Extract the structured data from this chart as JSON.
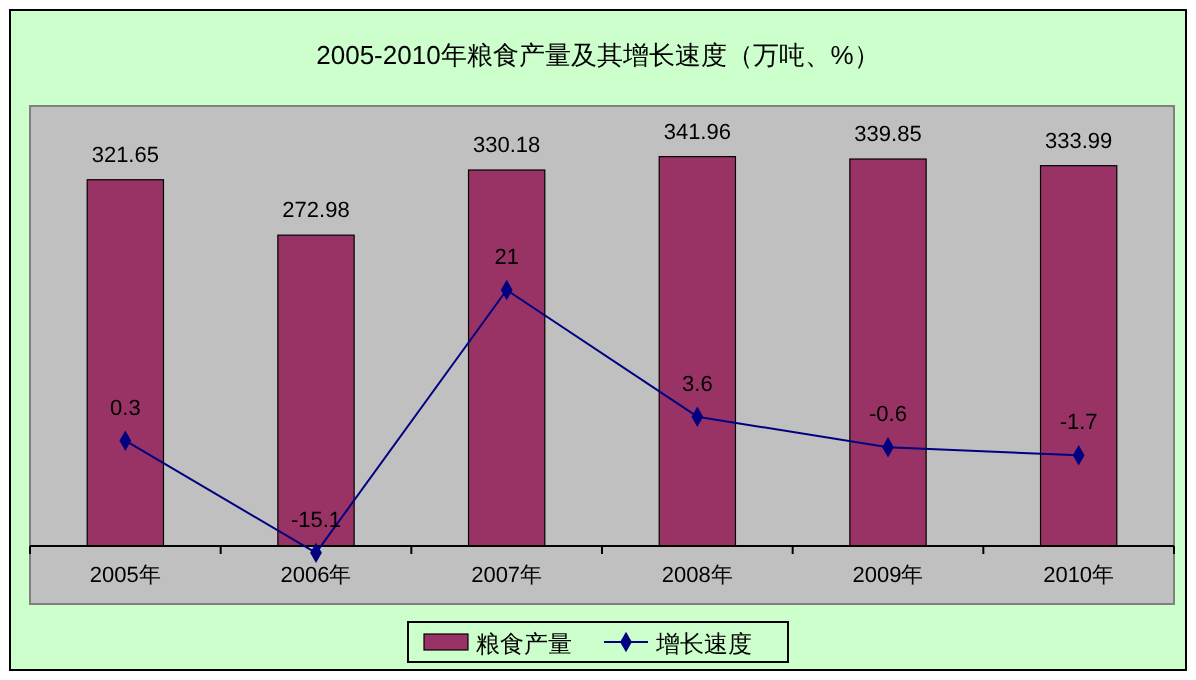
{
  "chart_data": {
    "type": "bar",
    "title": "2005-2010年粮食产量及其增长速度（万吨、%）",
    "categories": [
      "2005年",
      "2006年",
      "2007年",
      "2008年",
      "2009年",
      "2010年"
    ],
    "series": [
      {
        "name": "粮食产量",
        "color": "#993366",
        "values": [
          321.65,
          272.98,
          330.18,
          341.96,
          339.85,
          333.99
        ]
      },
      {
        "name": "增长速度",
        "type": "line",
        "axis": "y2",
        "color": "#000080",
        "values": [
          0.3,
          -15.1,
          21,
          3.6,
          -0.6,
          -1.7
        ]
      }
    ],
    "data_labels": true,
    "legend": "bottom",
    "marker": "diamond"
  }
}
